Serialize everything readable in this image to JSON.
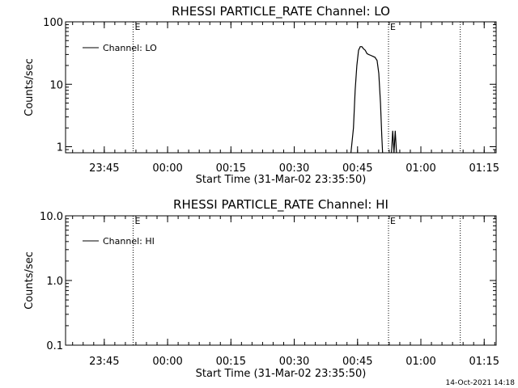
{
  "colors": {
    "background": "#ffffff",
    "foreground": "#000000"
  },
  "footer": {
    "timestamp": "14-Oct-2021 14:18"
  },
  "chart_data": [
    {
      "type": "line",
      "title": "RHESSI PARTICLE_RATE Channel: LO",
      "xlabel": "Start Time (31-Mar-02 23:35:50)",
      "ylabel": "Counts/sec",
      "x_units": "minutes after 23:35:50",
      "xlim": [
        0,
        102
      ],
      "x_ticks": [
        {
          "label": "23:45",
          "value": 9.17
        },
        {
          "label": "00:00",
          "value": 24.17
        },
        {
          "label": "00:15",
          "value": 39.17
        },
        {
          "label": "00:30",
          "value": 54.17
        },
        {
          "label": "00:45",
          "value": 69.17
        },
        {
          "label": "01:00",
          "value": 84.17
        },
        {
          "label": "01:15",
          "value": 99.17
        }
      ],
      "y_scale": "log",
      "ylim": [
        0.8,
        100
      ],
      "y_ticks": [
        {
          "label": "1",
          "value": 1
        },
        {
          "label": "10",
          "value": 10
        },
        {
          "label": "100",
          "value": 100
        }
      ],
      "legend": {
        "position": "top-left",
        "entries": [
          "Channel: LO"
        ]
      },
      "event_lines": [
        {
          "x": 16,
          "label": "E"
        },
        {
          "x": 76.5,
          "label": "E"
        },
        {
          "x": 93.5,
          "label": ""
        }
      ],
      "series": [
        {
          "name": "Channel: LO",
          "points": [
            [
              67.6,
              0.8
            ],
            [
              68.2,
              2
            ],
            [
              68.6,
              8
            ],
            [
              69.0,
              20
            ],
            [
              69.4,
              35
            ],
            [
              69.8,
              40
            ],
            [
              70.2,
              40
            ],
            [
              70.6,
              37
            ],
            [
              71.0,
              35
            ],
            [
              71.4,
              31
            ],
            [
              71.8,
              30
            ],
            [
              72.3,
              29
            ],
            [
              72.8,
              28
            ],
            [
              73.3,
              27
            ],
            [
              73.8,
              24
            ],
            [
              74.2,
              15
            ],
            [
              74.6,
              5
            ],
            [
              74.9,
              1.5
            ],
            [
              75.1,
              0.8
            ]
          ]
        },
        {
          "name": "Channel: LO spikes",
          "points": [
            [
              77.2,
              0.8
            ],
            [
              77.5,
              1.8
            ],
            [
              77.8,
              0.8
            ],
            [
              78.1,
              1.8
            ],
            [
              78.4,
              0.8
            ]
          ]
        }
      ]
    },
    {
      "type": "line",
      "title": "RHESSI PARTICLE_RATE Channel: HI",
      "xlabel": "Start Time (31-Mar-02 23:35:50)",
      "ylabel": "Counts/sec",
      "x_units": "minutes after 23:35:50",
      "xlim": [
        0,
        102
      ],
      "x_ticks": [
        {
          "label": "23:45",
          "value": 9.17
        },
        {
          "label": "00:00",
          "value": 24.17
        },
        {
          "label": "00:15",
          "value": 39.17
        },
        {
          "label": "00:30",
          "value": 54.17
        },
        {
          "label": "00:45",
          "value": 69.17
        },
        {
          "label": "01:00",
          "value": 84.17
        },
        {
          "label": "01:15",
          "value": 99.17
        }
      ],
      "y_scale": "log",
      "ylim": [
        0.1,
        10
      ],
      "y_ticks": [
        {
          "label": "0.1",
          "value": 0.1
        },
        {
          "label": "1.0",
          "value": 1
        },
        {
          "label": "10.0",
          "value": 10
        }
      ],
      "legend": {
        "position": "top-left",
        "entries": [
          "Channel: HI"
        ]
      },
      "event_lines": [
        {
          "x": 16,
          "label": "E"
        },
        {
          "x": 76.5,
          "label": "E"
        },
        {
          "x": 93.5,
          "label": ""
        }
      ],
      "series": [
        {
          "name": "Channel: HI",
          "points": []
        }
      ]
    }
  ]
}
